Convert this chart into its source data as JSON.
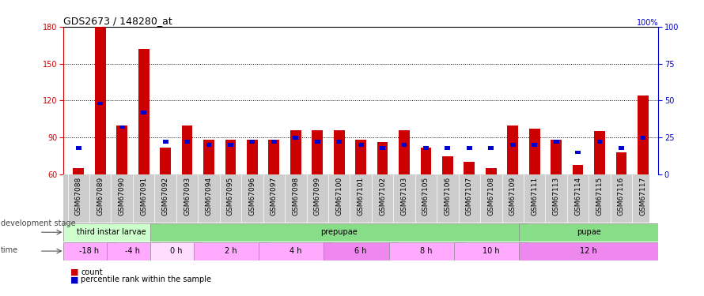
{
  "title": "GDS2673 / 148280_at",
  "samples": [
    "GSM67088",
    "GSM67089",
    "GSM67090",
    "GSM67091",
    "GSM67092",
    "GSM67093",
    "GSM67094",
    "GSM67095",
    "GSM67096",
    "GSM67097",
    "GSM67098",
    "GSM67099",
    "GSM67100",
    "GSM67101",
    "GSM67102",
    "GSM67103",
    "GSM67105",
    "GSM67106",
    "GSM67107",
    "GSM67108",
    "GSM67109",
    "GSM67111",
    "GSM67113",
    "GSM67114",
    "GSM67115",
    "GSM67116",
    "GSM67117"
  ],
  "count_values": [
    65,
    180,
    100,
    162,
    82,
    100,
    88,
    88,
    88,
    88,
    96,
    96,
    96,
    88,
    86,
    96,
    82,
    75,
    70,
    65,
    100,
    97,
    88,
    68,
    95,
    78,
    124
  ],
  "percentile_values": [
    18,
    48,
    32,
    42,
    22,
    22,
    20,
    20,
    22,
    22,
    25,
    22,
    22,
    20,
    18,
    20,
    18,
    18,
    18,
    18,
    20,
    20,
    22,
    15,
    22,
    18,
    25
  ],
  "ylim_left": [
    60,
    180
  ],
  "ylim_right": [
    0,
    100
  ],
  "yticks_left": [
    60,
    90,
    120,
    150,
    180
  ],
  "yticks_right": [
    0,
    25,
    50,
    75,
    100
  ],
  "grid_values": [
    90,
    120,
    150
  ],
  "bar_color": "#cc0000",
  "percentile_color": "#0000cc",
  "left_axis_color": "#cc0000",
  "right_axis_color": "#0000cc",
  "stages": [
    {
      "label": "third instar larvae",
      "start": 0,
      "end": 4,
      "color": "#ccffcc"
    },
    {
      "label": "prepupae",
      "start": 4,
      "end": 21,
      "color": "#88dd88"
    },
    {
      "label": "pupae",
      "start": 21,
      "end": 27,
      "color": "#88dd88"
    }
  ],
  "time_segments": [
    {
      "label": "-18 h",
      "start": 0,
      "end": 2
    },
    {
      "label": "-4 h",
      "start": 2,
      "end": 4
    },
    {
      "label": "0 h",
      "start": 4,
      "end": 6
    },
    {
      "label": "2 h",
      "start": 6,
      "end": 9
    },
    {
      "label": "4 h",
      "start": 9,
      "end": 12
    },
    {
      "label": "6 h",
      "start": 12,
      "end": 15
    },
    {
      "label": "8 h",
      "start": 15,
      "end": 18
    },
    {
      "label": "10 h",
      "start": 18,
      "end": 21
    },
    {
      "label": "12 h",
      "start": 21,
      "end": 27
    }
  ],
  "time_colors": [
    "#ffaaff",
    "#ffaaff",
    "#ffaaff",
    "#ffaaff",
    "#ee88ee",
    "#ee88ee",
    "#ffaaff",
    "#ffaaff",
    "#ee88ee"
  ],
  "bar_width": 0.5,
  "percentile_bar_width": 0.25
}
